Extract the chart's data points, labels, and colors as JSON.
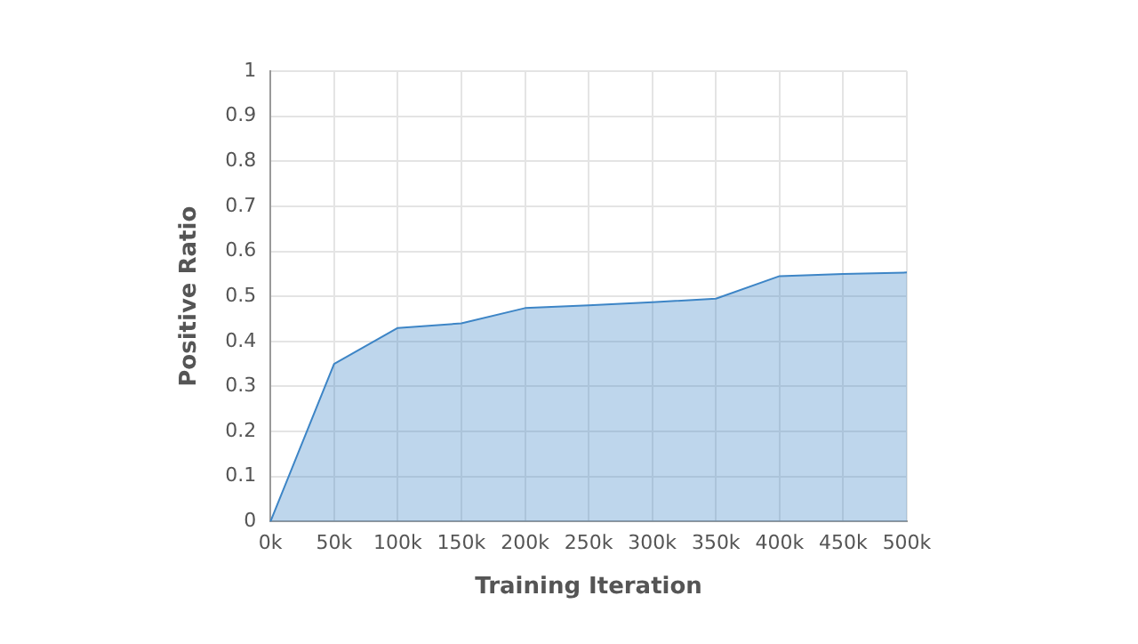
{
  "chart_data": {
    "type": "area",
    "xlabel": "Training Iteration",
    "ylabel": "Positive Ratio",
    "categories": [
      "0k",
      "50k",
      "100k",
      "150k",
      "200k",
      "250k",
      "300k",
      "350k",
      "400k",
      "450k",
      "500k"
    ],
    "series": [
      {
        "color": "#3d85c6",
        "values": [
          0,
          0.35,
          0.43,
          0.44,
          0.474,
          0.48,
          0.487,
          0.495,
          0.545,
          0.55,
          0.553
        ]
      }
    ],
    "ylim": [
      0,
      1
    ],
    "yticks": [
      0,
      0.1,
      0.2,
      0.3,
      0.4,
      0.5,
      0.6,
      0.7,
      0.8,
      0.9,
      1
    ],
    "grid": true,
    "legend": false
  }
}
